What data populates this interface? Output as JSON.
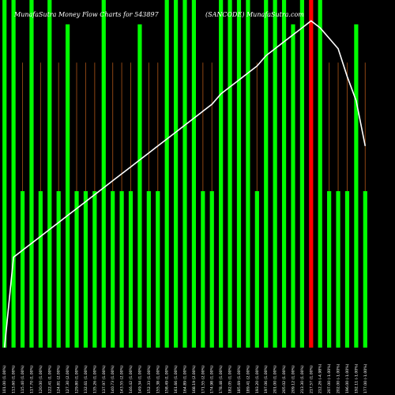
{
  "chart_data": {
    "type": "bar",
    "title": "MunafaSutra  Money Flow  Charts for 543897",
    "subtitle": "(SANCODE)  MunafaSutra.com",
    "ylim": [
      0,
      100
    ],
    "grid": false,
    "legend": "none",
    "colors": {
      "background": "#000000",
      "up_bar": "#00ff00",
      "down_bar": "#ff0000",
      "volume_line": "#8b4513",
      "money_flow_line": "#ffffff",
      "text": "#ffffff"
    },
    "categories": [
      "101.00 (1.00%)",
      "113.60 (1.00%)",
      "115.40 (1.00%)",
      "117.70 (1.00%)",
      "120.00 (1.00%)",
      "122.41 (1.00%)",
      "124.81 (2.00%)",
      "127.30 (2.00%)",
      "129.80 (1.00%)",
      "132.61 (1.00%)",
      "135.26 (1.00%)",
      "137.97 (1.00%)",
      "140.73 (1.00%)",
      "143.55 (2.00%)",
      "146.42 (1.00%)",
      "149.34 (1.00%)",
      "152.33 (1.00%)",
      "155.38 (1.00%)",
      "158.49 (1.00%)",
      "161.66 (1.00%)",
      "164.89 (1.00%)",
      "168.19 (2.00%)",
      "171.55 (2.00%)",
      "174.98 (1.00%)",
      "178.48 (1.00%)",
      "182.05 (1.00%)",
      "185.69 (1.00%)",
      "189.41 (2.00%)",
      "193.20 (1.00%)",
      "197.06 (1.00%)",
      "201.00 (1.00%)",
      "205.02 (1.00%)",
      "209.12 (1.00%)",
      "213.30 (1.00%)",
      "217.57 (1.00%)",
      "212.26 (-4.98%)",
      "207.00 (-1.00%)",
      "202.00 (-1.00%)",
      "196.00 (-1.00%)",
      "192.11 (-1.00%)",
      "177.00 (-1.00%)"
    ],
    "bar_heights": [
      100,
      100,
      45,
      100,
      45,
      100,
      45,
      93,
      45,
      45,
      45,
      100,
      45,
      45,
      45,
      93,
      45,
      45,
      100,
      100,
      100,
      100,
      45,
      45,
      100,
      100,
      100,
      100,
      45,
      100,
      100,
      100,
      93,
      100,
      100,
      100,
      45,
      45,
      45,
      93,
      45
    ],
    "bar_direction": [
      "up",
      "up",
      "up",
      "up",
      "up",
      "up",
      "up",
      "up",
      "up",
      "up",
      "up",
      "up",
      "up",
      "up",
      "up",
      "up",
      "up",
      "up",
      "up",
      "up",
      "up",
      "up",
      "up",
      "up",
      "up",
      "up",
      "up",
      "up",
      "up",
      "up",
      "up",
      "up",
      "up",
      "up",
      "down",
      "up",
      "up",
      "up",
      "up",
      "up",
      "up"
    ],
    "volume_lines": [
      0,
      0,
      82,
      0,
      82,
      0,
      82,
      0,
      82,
      82,
      82,
      0,
      82,
      82,
      82,
      0,
      82,
      82,
      0,
      0,
      0,
      0,
      82,
      82,
      0,
      0,
      0,
      0,
      82,
      0,
      0,
      0,
      0,
      0,
      0,
      0,
      82,
      82,
      82,
      0,
      82
    ],
    "money_flow": [
      0,
      26,
      28,
      30,
      32,
      34,
      36,
      38,
      40,
      42,
      44,
      46,
      48,
      50,
      52,
      54,
      56,
      58,
      60,
      62,
      64,
      66,
      68,
      70,
      73,
      75,
      77,
      79,
      81,
      84,
      86,
      88,
      90,
      92,
      94,
      92,
      89,
      86,
      78,
      71,
      58
    ]
  }
}
